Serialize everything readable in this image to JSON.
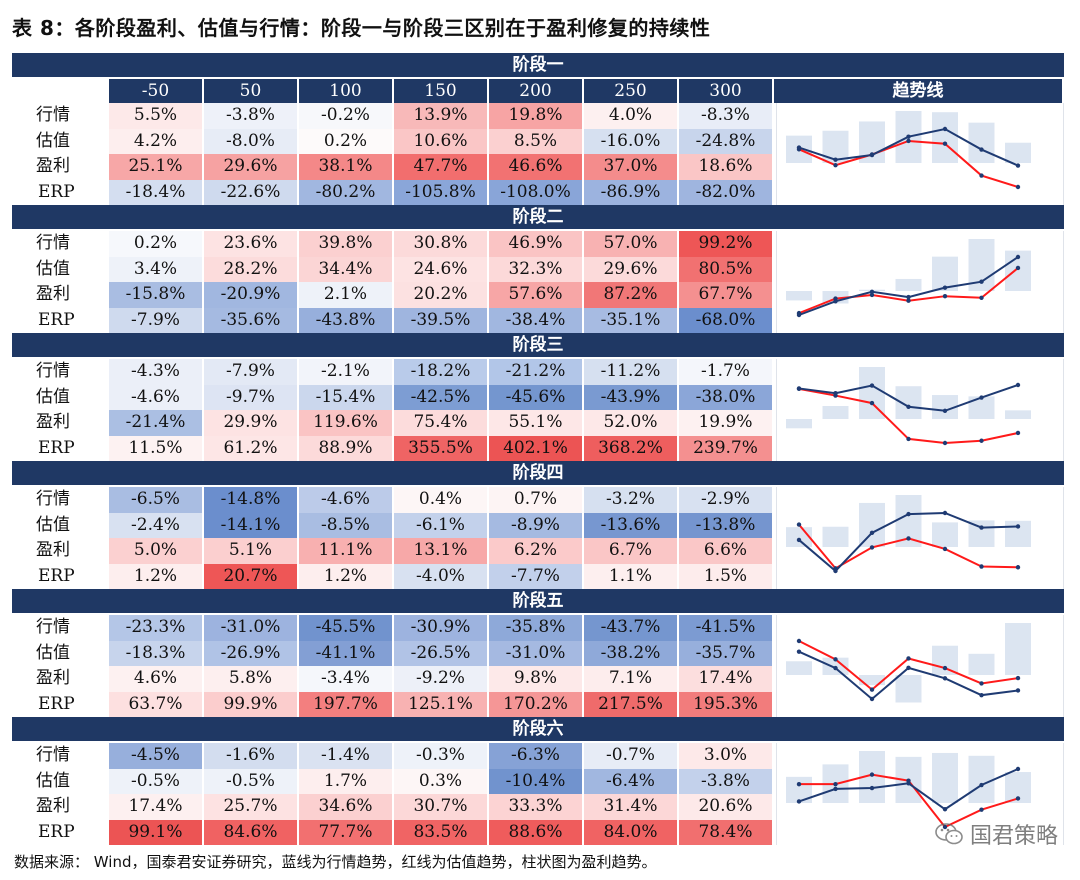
{
  "title": "表 8：各阶段盈利、估值与行情：阶段一与阶段三区别在于盈利修复的持续性",
  "columns": [
    "-50",
    "50",
    "100",
    "150",
    "200",
    "250",
    "300"
  ],
  "trend_header": "趋势线",
  "row_labels": [
    "行情",
    "估值",
    "盈利",
    "ERP"
  ],
  "stages": [
    {
      "name": "阶段一",
      "rows": [
        [
          "5.5%",
          "-3.8%",
          "-0.2%",
          "13.9%",
          "19.8%",
          "4.0%",
          "-8.3%"
        ],
        [
          "4.2%",
          "-8.0%",
          "0.2%",
          "10.6%",
          "8.5%",
          "-16.0%",
          "-24.8%"
        ],
        [
          "25.1%",
          "29.6%",
          "38.1%",
          "47.7%",
          "46.6%",
          "37.0%",
          "18.6%"
        ],
        [
          "-18.4%",
          "-22.6%",
          "-80.2%",
          "-105.8%",
          "-108.0%",
          "-86.9%",
          "-82.0%"
        ]
      ],
      "colors": [
        [
          "#fde9e9",
          "#eef1f9",
          "#f7f8fb",
          "#f8b9b9",
          "#f7a4a4",
          "#fdf0f0",
          "#e8edf7"
        ],
        [
          "#fdeeee",
          "#e7ecf6",
          "#fdfafa",
          "#fac6c6",
          "#fbd0d0",
          "#d6e0f0",
          "#c8d5ec"
        ],
        [
          "#f7a7a7",
          "#f6a2a2",
          "#f48888",
          "#f26e6e",
          "#f27272",
          "#f48c8c",
          "#fac6c6"
        ],
        [
          "#d4def0",
          "#cfdaee",
          "#a1b7e0",
          "#8aa6d9",
          "#89a5d8",
          "#9cb3df",
          "#9fb5df"
        ]
      ]
    },
    {
      "name": "阶段二",
      "rows": [
        [
          "0.2%",
          "23.6%",
          "39.8%",
          "30.8%",
          "46.9%",
          "57.0%",
          "99.2%"
        ],
        [
          "3.4%",
          "28.2%",
          "34.4%",
          "24.6%",
          "32.3%",
          "29.6%",
          "80.5%"
        ],
        [
          "-15.8%",
          "-20.9%",
          "2.1%",
          "20.2%",
          "57.6%",
          "87.2%",
          "67.7%"
        ],
        [
          "-7.9%",
          "-35.6%",
          "-43.8%",
          "-39.5%",
          "-38.4%",
          "-35.1%",
          "-68.0%"
        ]
      ],
      "colors": [
        [
          "#f6f8fc",
          "#fde3e3",
          "#fbd0d0",
          "#fcdada",
          "#fac4c4",
          "#f8b2b2",
          "#ee5656"
        ],
        [
          "#eef2f9",
          "#fcdcdc",
          "#fbd5d5",
          "#fde3e3",
          "#fcd9d9",
          "#fcdada",
          "#f17171"
        ],
        [
          "#a9bde2",
          "#a1b7e0",
          "#eef2f9",
          "#fce1e1",
          "#f7a6a6",
          "#f17777",
          "#f49090"
        ],
        [
          "#cfdaee",
          "#a5bae1",
          "#97afdc",
          "#9fb5df",
          "#a1b7e0",
          "#a7bbe2",
          "#6b8ecd"
        ]
      ]
    },
    {
      "name": "阶段三",
      "rows": [
        [
          "-4.3%",
          "-7.9%",
          "-2.1%",
          "-18.2%",
          "-21.2%",
          "-11.2%",
          "-1.7%"
        ],
        [
          "-4.6%",
          "-9.7%",
          "-15.4%",
          "-42.5%",
          "-45.6%",
          "-43.9%",
          "-38.0%"
        ],
        [
          "-21.4%",
          "29.9%",
          "119.6%",
          "75.4%",
          "55.1%",
          "52.0%",
          "19.9%"
        ],
        [
          "11.5%",
          "61.2%",
          "88.9%",
          "355.5%",
          "402.1%",
          "368.2%",
          "239.7%"
        ]
      ],
      "colors": [
        [
          "#ebeff8",
          "#e3e9f5",
          "#f2f4fa",
          "#b9cbea",
          "#b2c6e8",
          "#d6e0f0",
          "#f4f6fb"
        ],
        [
          "#ebeff8",
          "#dde4f3",
          "#cbd7ed",
          "#7d9dd3",
          "#7496cf",
          "#7a9ad1",
          "#8ba6d8"
        ],
        [
          "#abbfe3",
          "#fde3e3",
          "#fac4c4",
          "#fcdcdc",
          "#fde7e7",
          "#fde8e8",
          "#fdf1f1"
        ],
        [
          "#fdf2f2",
          "#fde6e6",
          "#fcdada",
          "#ef6464",
          "#ec5454",
          "#ee5e5e",
          "#f49090"
        ]
      ]
    },
    {
      "name": "阶段四",
      "rows": [
        [
          "-6.5%",
          "-14.8%",
          "-4.6%",
          "0.4%",
          "0.7%",
          "-3.2%",
          "-2.9%"
        ],
        [
          "-2.4%",
          "-14.1%",
          "-8.5%",
          "-6.1%",
          "-8.9%",
          "-13.6%",
          "-13.8%"
        ],
        [
          "5.0%",
          "5.1%",
          "11.1%",
          "13.1%",
          "6.2%",
          "6.7%",
          "6.6%"
        ],
        [
          "1.2%",
          "20.7%",
          "1.2%",
          "-4.0%",
          "-7.7%",
          "1.1%",
          "1.5%"
        ]
      ],
      "colors": [
        [
          "#a9bde2",
          "#6b8ecd",
          "#bccbe9",
          "#fdf6f6",
          "#fdf4f4",
          "#d6e0f0",
          "#d8e1f1"
        ],
        [
          "#d8e1f1",
          "#6b8ecd",
          "#a9bde2",
          "#c3d1eb",
          "#a5bae1",
          "#7797d0",
          "#7595cf"
        ],
        [
          "#fbd0d0",
          "#fbcfcf",
          "#f8b0b0",
          "#f7a8a8",
          "#fbcaca",
          "#fac6c6",
          "#fac7c7"
        ],
        [
          "#fdeeee",
          "#ee5656",
          "#fdeeee",
          "#d8e1f1",
          "#c2d0eb",
          "#fdefef",
          "#fdecec"
        ]
      ]
    },
    {
      "name": "阶段五",
      "rows": [
        [
          "-23.3%",
          "-31.0%",
          "-45.5%",
          "-30.9%",
          "-35.8%",
          "-43.7%",
          "-41.5%"
        ],
        [
          "-18.3%",
          "-26.9%",
          "-41.1%",
          "-26.5%",
          "-31.0%",
          "-38.2%",
          "-35.7%"
        ],
        [
          "4.6%",
          "5.8%",
          "-3.4%",
          "-9.2%",
          "9.8%",
          "7.1%",
          "17.4%"
        ],
        [
          "63.7%",
          "99.9%",
          "197.7%",
          "125.1%",
          "170.2%",
          "217.5%",
          "195.3%"
        ]
      ],
      "colors": [
        [
          "#b4c6e7",
          "#9db3df",
          "#7193ce",
          "#9db3df",
          "#8ea9d9",
          "#7596cf",
          "#7c9bd2"
        ],
        [
          "#c7d4ec",
          "#b0c3e6",
          "#839fd4",
          "#b1c3e6",
          "#a5b9e1",
          "#8fa9d9",
          "#97afdc"
        ],
        [
          "#fdf1f1",
          "#fdefef",
          "#f5f7fb",
          "#edf0f8",
          "#fde9e9",
          "#fdeded",
          "#fcdede"
        ],
        [
          "#fde0e0",
          "#fbcdcd",
          "#f37f7f",
          "#f8b2b2",
          "#f59696",
          "#ef6b6b",
          "#f27c7c"
        ]
      ]
    },
    {
      "name": "阶段六",
      "rows": [
        [
          "-4.5%",
          "-1.6%",
          "-1.4%",
          "-0.3%",
          "-6.3%",
          "-0.7%",
          "3.0%"
        ],
        [
          "-0.5%",
          "-0.5%",
          "1.7%",
          "0.3%",
          "-10.4%",
          "-6.4%",
          "-3.8%"
        ],
        [
          "17.4%",
          "25.7%",
          "34.6%",
          "30.7%",
          "33.3%",
          "31.4%",
          "20.6%"
        ],
        [
          "99.1%",
          "84.6%",
          "77.7%",
          "83.5%",
          "88.6%",
          "84.0%",
          "78.4%"
        ]
      ],
      "colors": [
        [
          "#97afdc",
          "#d3ddef",
          "#dae2f1",
          "#eef2f9",
          "#86a2d6",
          "#e7ecf6",
          "#fde9e9"
        ],
        [
          "#eef2f9",
          "#eef2f9",
          "#fdeeee",
          "#fdf6f6",
          "#7193ce",
          "#a1b7e0",
          "#c3d1eb"
        ],
        [
          "#fdf0f0",
          "#fde2e2",
          "#fbd0d0",
          "#fcd8d8",
          "#fcd3d3",
          "#fcd7d7",
          "#fde9e9"
        ],
        [
          "#ec5454",
          "#f06262",
          "#f27070",
          "#f06464",
          "#ef5c5c",
          "#f06363",
          "#f16f6f"
        ]
      ]
    }
  ],
  "chart_data": [
    {
      "type": "line",
      "stage": "阶段一",
      "bar_values": [
        25.1,
        29.6,
        38.1,
        47.7,
        46.6,
        37.0,
        18.6
      ],
      "blue_values": [
        5.5,
        -3.8,
        -0.2,
        13.9,
        19.8,
        4.0,
        -8.3
      ],
      "red_values": [
        4.2,
        -8.0,
        0.2,
        10.6,
        8.5,
        -16.0,
        -24.8
      ]
    },
    {
      "type": "line",
      "stage": "阶段二",
      "bar_values": [
        -15.8,
        -20.9,
        2.1,
        20.2,
        57.6,
        87.2,
        67.7
      ],
      "blue_values": [
        0.2,
        23.6,
        39.8,
        30.8,
        46.9,
        57.0,
        99.2
      ],
      "red_values": [
        3.4,
        28.2,
        34.4,
        24.6,
        32.3,
        29.6,
        80.5
      ]
    },
    {
      "type": "line",
      "stage": "阶段三",
      "bar_values": [
        -21.4,
        29.9,
        119.6,
        75.4,
        55.1,
        52.0,
        19.9
      ],
      "blue_values": [
        -4.3,
        -7.9,
        -2.1,
        -18.2,
        -21.2,
        -11.2,
        -1.7
      ],
      "red_values": [
        -4.6,
        -9.7,
        -15.4,
        -42.5,
        -45.6,
        -43.9,
        -38.0
      ]
    },
    {
      "type": "line",
      "stage": "阶段四",
      "bar_values": [
        5.0,
        5.1,
        11.1,
        13.1,
        6.2,
        6.7,
        6.6
      ],
      "blue_values": [
        -6.5,
        -14.8,
        -4.6,
        0.4,
        0.7,
        -3.2,
        -2.9
      ],
      "red_values": [
        -2.4,
        -14.1,
        -8.5,
        -6.1,
        -8.9,
        -13.6,
        -13.8
      ]
    },
    {
      "type": "line",
      "stage": "阶段五",
      "bar_values": [
        4.6,
        5.8,
        -3.4,
        -9.2,
        9.8,
        7.1,
        17.4
      ],
      "blue_values": [
        -23.3,
        -31.0,
        -45.5,
        -30.9,
        -35.8,
        -43.7,
        -41.5
      ],
      "red_values": [
        -18.3,
        -26.9,
        -41.1,
        -26.5,
        -31.0,
        -38.2,
        -35.7
      ]
    },
    {
      "type": "line",
      "stage": "阶段六",
      "bar_values": [
        17.4,
        25.7,
        34.6,
        30.7,
        33.3,
        31.4,
        20.6
      ],
      "blue_values": [
        -4.5,
        -1.6,
        -1.4,
        -0.3,
        -6.3,
        -0.7,
        3.0
      ],
      "red_values": [
        -0.5,
        -0.5,
        1.7,
        0.3,
        -10.4,
        -6.4,
        -3.8
      ]
    }
  ],
  "colors": {
    "header_bg": "#1f3864",
    "blue_line": "#1f3b73",
    "red_line": "#ff1a1a",
    "bar_fill": "#dce5f1"
  },
  "footer": "数据来源：  Wind，国泰君安证券研究，蓝线为行情趋势，红线为估值趋势，柱状图为盈利趋势。",
  "watermark": "国君策略"
}
